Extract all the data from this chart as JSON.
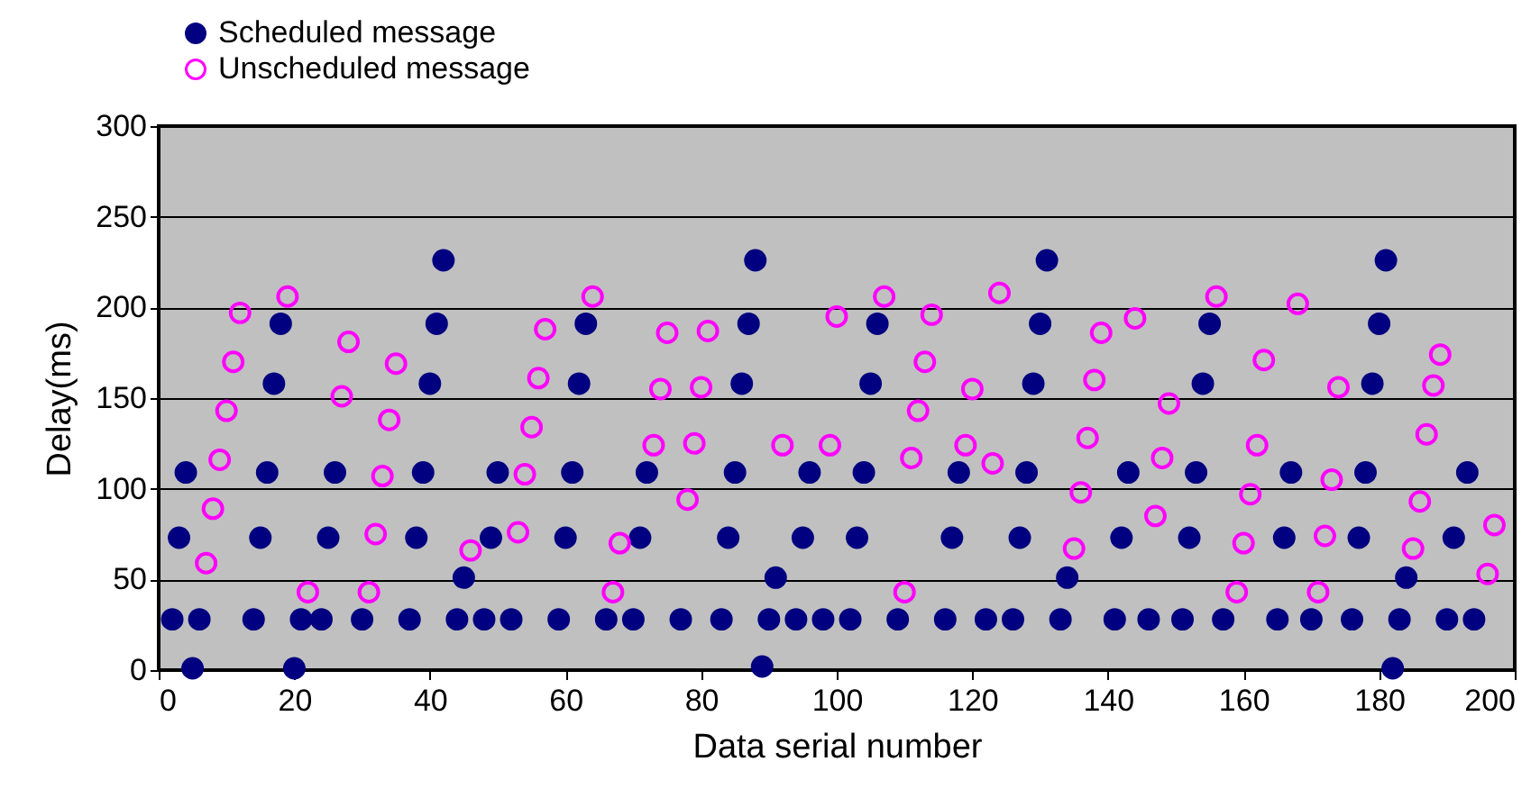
{
  "chart_data": {
    "type": "scatter",
    "xlabel": "Data serial number",
    "ylabel": "Delay(ms)",
    "xlim": [
      0,
      200
    ],
    "xticks": [
      0,
      20,
      40,
      60,
      80,
      100,
      120,
      140,
      160,
      180,
      200
    ],
    "ylim": [
      0,
      300
    ],
    "yticks": [
      0,
      50,
      100,
      150,
      200,
      250,
      300
    ],
    "grid": "y",
    "legend": "top left",
    "marker": "circle",
    "series": [
      {
        "name": "Scheduled message",
        "color": "#000080",
        "x": [
          2,
          3,
          4,
          5,
          6,
          14,
          15,
          16,
          17,
          18,
          20,
          21,
          24,
          25,
          26,
          30,
          37,
          38,
          39,
          40,
          41,
          42,
          44,
          45,
          48,
          49,
          50,
          52,
          59,
          60,
          61,
          62,
          63,
          66,
          70,
          71,
          72,
          77,
          83,
          84,
          85,
          86,
          87,
          88,
          89,
          90,
          91,
          94,
          95,
          96,
          98,
          102,
          103,
          104,
          105,
          106,
          109,
          116,
          117,
          118,
          122,
          126,
          127,
          128,
          129,
          130,
          131,
          133,
          134,
          141,
          142,
          143,
          146,
          151,
          152,
          153,
          154,
          155,
          157,
          165,
          166,
          167,
          170,
          176,
          177,
          178,
          179,
          180,
          181,
          182,
          183,
          184,
          190,
          191,
          193,
          194
        ],
        "values": [
          28,
          73,
          109,
          1,
          28,
          28,
          73,
          109,
          158,
          191,
          1,
          28,
          28,
          73,
          109,
          28,
          28,
          73,
          109,
          158,
          191,
          226,
          28,
          51,
          28,
          73,
          109,
          28,
          28,
          73,
          109,
          158,
          191,
          28,
          28,
          73,
          109,
          28,
          28,
          73,
          109,
          158,
          191,
          226,
          2,
          28,
          51,
          28,
          73,
          109,
          28,
          28,
          73,
          109,
          158,
          191,
          28,
          28,
          73,
          109,
          28,
          28,
          73,
          109,
          158,
          191,
          226,
          28,
          51,
          28,
          73,
          109,
          28,
          28,
          73,
          109,
          158,
          191,
          28,
          28,
          73,
          109,
          28,
          28,
          73,
          109,
          158,
          191,
          226,
          1,
          28,
          51,
          28,
          73,
          109,
          28
        ]
      },
      {
        "name": "Unscheduled message",
        "color": "#ff00ff",
        "x": [
          7,
          8,
          9,
          10,
          11,
          12,
          19,
          22,
          27,
          28,
          31,
          32,
          33,
          34,
          35,
          46,
          53,
          54,
          55,
          56,
          57,
          64,
          67,
          68,
          73,
          74,
          75,
          78,
          79,
          80,
          81,
          92,
          99,
          100,
          107,
          110,
          111,
          112,
          113,
          114,
          119,
          120,
          123,
          124,
          135,
          136,
          137,
          138,
          139,
          144,
          147,
          148,
          149,
          156,
          159,
          160,
          161,
          162,
          163,
          168,
          171,
          172,
          173,
          174,
          185,
          186,
          187,
          188,
          189,
          196,
          197
        ],
        "values": [
          59,
          89,
          116,
          143,
          170,
          197,
          206,
          43,
          151,
          181,
          43,
          75,
          107,
          138,
          169,
          66,
          76,
          108,
          134,
          161,
          188,
          206,
          43,
          70,
          124,
          155,
          186,
          94,
          125,
          156,
          187,
          124,
          124,
          195,
          206,
          43,
          117,
          143,
          170,
          196,
          124,
          155,
          114,
          208,
          67,
          98,
          128,
          160,
          186,
          194,
          85,
          117,
          147,
          206,
          43,
          70,
          97,
          124,
          171,
          202,
          43,
          74,
          105,
          156,
          67,
          93,
          130,
          157,
          174,
          53,
          80
        ]
      }
    ]
  }
}
